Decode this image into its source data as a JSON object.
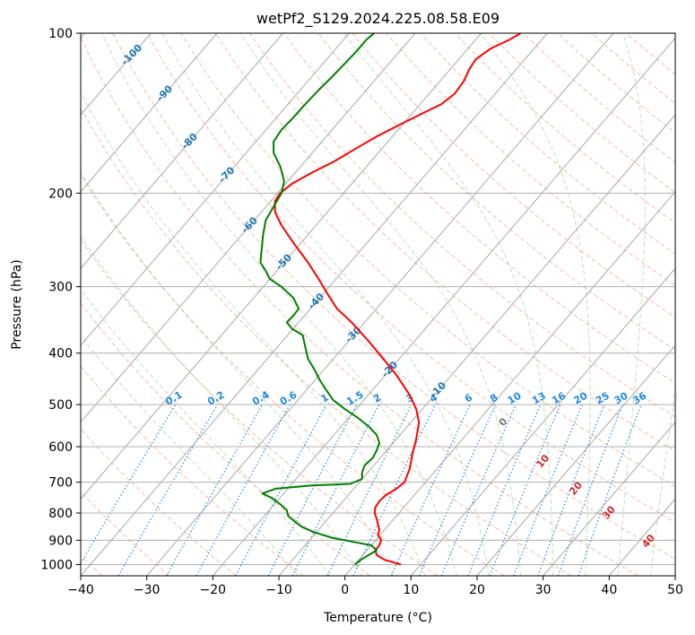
{
  "chart_data": {
    "type": "line",
    "title": "wetPf2_S129.2024.225.08.58.E09",
    "xlabel": "Temperature (°C)",
    "ylabel": "Pressure (hPa)",
    "xlim": [
      -40,
      50
    ],
    "ylim": [
      1050,
      100
    ],
    "y_scale": "log",
    "xticks": [
      -40,
      -30,
      -20,
      -10,
      0,
      10,
      20,
      30,
      40,
      50
    ],
    "yticks": [
      100,
      200,
      300,
      400,
      500,
      600,
      700,
      800,
      900,
      1000
    ],
    "grid": true,
    "colors": {
      "temperature": "#ff0000",
      "dewpoint": "#008000",
      "skewed_isotherm": "#a9a9a9",
      "dry_adiabat": "#f4a582",
      "moist_adiabat": "#a6d8a6",
      "mixing_ratio": "#1e88e5",
      "isotherm_label": "#1f77b4",
      "moist_label": "#d62728"
    },
    "series": [
      {
        "key": "temperature",
        "points": [
          [
            8.5,
            1000
          ],
          [
            6.0,
            980
          ],
          [
            4.8,
            960
          ],
          [
            4.6,
            940
          ],
          [
            5.2,
            920
          ],
          [
            5.5,
            900
          ],
          [
            5.0,
            880
          ],
          [
            5.2,
            860
          ],
          [
            5.0,
            840
          ],
          [
            4.8,
            820
          ],
          [
            4.5,
            800
          ],
          [
            4.6,
            780
          ],
          [
            5.2,
            760
          ],
          [
            6.2,
            740
          ],
          [
            7.8,
            720
          ],
          [
            9.0,
            700
          ],
          [
            9.8,
            660
          ],
          [
            10.2,
            620
          ],
          [
            10.8,
            580
          ],
          [
            11.2,
            540
          ],
          [
            10.8,
            510
          ],
          [
            9.8,
            480
          ],
          [
            7.8,
            440
          ],
          [
            5.8,
            410
          ],
          [
            3.6,
            380
          ],
          [
            1.0,
            350
          ],
          [
            -1.2,
            330
          ],
          [
            -2.6,
            310
          ],
          [
            -4.0,
            290
          ],
          [
            -5.6,
            270
          ],
          [
            -7.6,
            250
          ],
          [
            -9.6,
            230
          ],
          [
            -10.6,
            217
          ],
          [
            -10.6,
            207
          ],
          [
            -9.8,
            200
          ],
          [
            -8.0,
            192
          ],
          [
            -5.0,
            183
          ],
          [
            -1.5,
            174
          ],
          [
            1.6,
            165
          ],
          [
            5.0,
            156
          ],
          [
            8.6,
            148
          ],
          [
            12.0,
            141
          ],
          [
            14.6,
            136
          ],
          [
            16.6,
            130
          ],
          [
            18.0,
            123
          ],
          [
            18.8,
            117
          ],
          [
            19.8,
            112
          ],
          [
            22.0,
            107
          ],
          [
            24.8,
            103
          ],
          [
            26.6,
            100
          ]
        ]
      },
      {
        "key": "dewpoint",
        "points": [
          [
            1.5,
            1000
          ],
          [
            2.4,
            980
          ],
          [
            3.6,
            960
          ],
          [
            4.8,
            940
          ],
          [
            4.0,
            920
          ],
          [
            1.0,
            905
          ],
          [
            -2.0,
            890
          ],
          [
            -4.6,
            870
          ],
          [
            -6.5,
            850
          ],
          [
            -7.6,
            830
          ],
          [
            -8.6,
            810
          ],
          [
            -8.8,
            790
          ],
          [
            -9.8,
            770
          ],
          [
            -11.0,
            750
          ],
          [
            -12.5,
            735
          ],
          [
            -10.5,
            720
          ],
          [
            -5.0,
            710
          ],
          [
            0.8,
            705
          ],
          [
            2.6,
            690
          ],
          [
            2.6,
            670
          ],
          [
            3.0,
            650
          ],
          [
            4.2,
            630
          ],
          [
            4.8,
            610
          ],
          [
            5.2,
            590
          ],
          [
            4.8,
            570
          ],
          [
            3.6,
            550
          ],
          [
            2.0,
            530
          ],
          [
            0.0,
            510
          ],
          [
            -1.8,
            490
          ],
          [
            -2.8,
            470
          ],
          [
            -3.8,
            450
          ],
          [
            -4.6,
            430
          ],
          [
            -5.6,
            410
          ],
          [
            -6.0,
            390
          ],
          [
            -6.4,
            370
          ],
          [
            -8.0,
            360
          ],
          [
            -8.8,
            350
          ],
          [
            -7.8,
            340
          ],
          [
            -7.0,
            330
          ],
          [
            -7.8,
            315
          ],
          [
            -9.6,
            300
          ],
          [
            -11.4,
            290
          ],
          [
            -12.0,
            280
          ],
          [
            -12.8,
            270
          ],
          [
            -12.6,
            255
          ],
          [
            -12.4,
            240
          ],
          [
            -12.0,
            225
          ],
          [
            -10.6,
            210
          ],
          [
            -9.6,
            200
          ],
          [
            -9.2,
            190
          ],
          [
            -9.8,
            178
          ],
          [
            -10.8,
            168
          ],
          [
            -10.8,
            160
          ],
          [
            -9.6,
            152
          ],
          [
            -8.0,
            145
          ],
          [
            -6.0,
            136
          ],
          [
            -4.0,
            128
          ],
          [
            -2.0,
            121
          ],
          [
            0.0,
            114
          ],
          [
            1.8,
            108
          ],
          [
            3.2,
            103
          ],
          [
            4.4,
            100
          ]
        ]
      }
    ],
    "isotherm_labels": [
      "-100",
      "-90",
      "-80",
      "-70",
      "-60",
      "-50",
      "-40",
      "-30",
      "-20",
      "-10"
    ],
    "mixing_ratio_labels": [
      "0.1",
      "0.2",
      "0.4",
      "0.6",
      "1",
      "1.5",
      "2",
      "3",
      "4",
      "6",
      "8",
      "10",
      "13",
      "16",
      "20",
      "25",
      "30",
      "36"
    ],
    "moist_adiabat_labels": [
      "0",
      "10",
      "20",
      "30",
      "40"
    ]
  }
}
